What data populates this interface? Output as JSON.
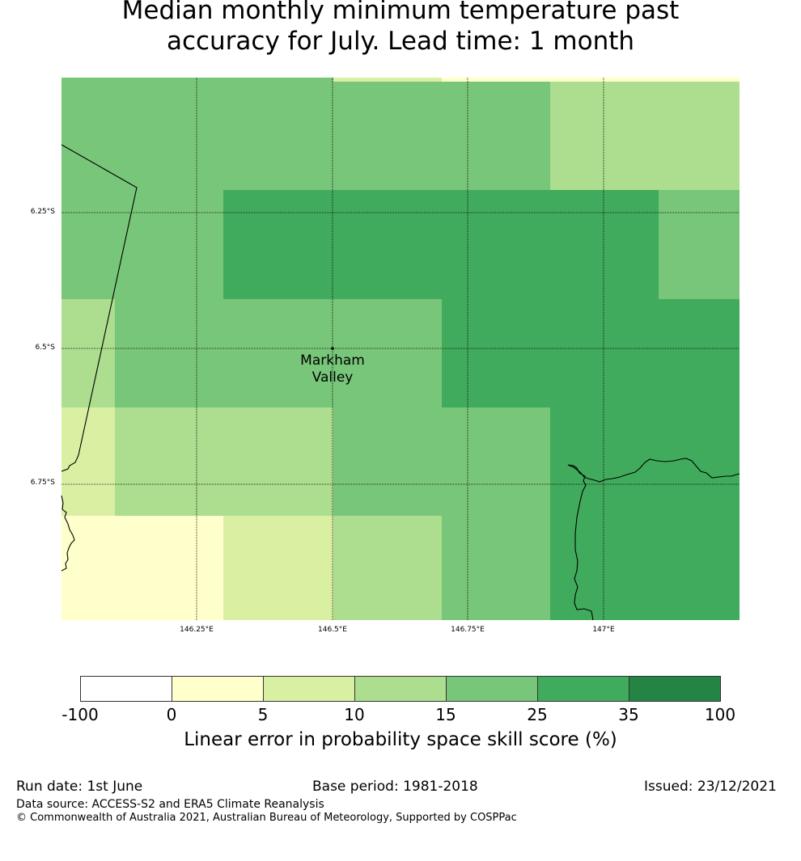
{
  "title": {
    "line1": "Median monthly minimum temperature past",
    "line2": "accuracy for July. Lead time: 1 month"
  },
  "map": {
    "lat_ticks": [
      "6.25°S",
      "6.5°S",
      "6.75°S"
    ],
    "lon_ticks": [
      "146.25°E",
      "146.5°E",
      "146.75°E",
      "147°E"
    ],
    "place_label": [
      "Markham",
      "Valley"
    ]
  },
  "colorbar": {
    "ticks": [
      "-100",
      "0",
      "5",
      "10",
      "15",
      "25",
      "35",
      "100"
    ],
    "colors": [
      "#ffffff",
      "#ffffcc",
      "#d9f0a3",
      "#addd8e",
      "#78c679",
      "#41ab5d",
      "#238443"
    ],
    "label": "Linear error in probability space skill score (%)"
  },
  "footer": {
    "run_date": "Run date: 1st June",
    "base_period": "Base period: 1981-2018",
    "issued": "Issued: 23/12/2021",
    "data_source": "Data source: ACCESS-S2 and ERA5 Climate Reanalysis",
    "copyright": "© Commonwealth of Australia 2021, Australian Bureau of Meteorology, Supported by COSPPac"
  }
}
